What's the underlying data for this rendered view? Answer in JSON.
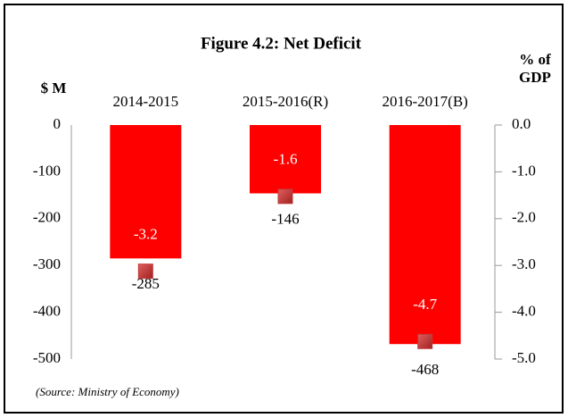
{
  "chart_data": {
    "type": "bar",
    "title": "Figure 4.2: Net Deficit",
    "y_label": "$ M",
    "y2_label_lines": [
      "% of",
      "GDP"
    ],
    "source": "(Source: Ministry of Economy)",
    "categories": [
      "2014-2015",
      "2015-2016(R)",
      "2016-2017(B)"
    ],
    "series": [
      {
        "type": "bar",
        "color": "#ff0000",
        "values": [
          -285,
          -146,
          -468
        ]
      },
      {
        "type": "scatter",
        "axis": "y2",
        "color": "#c0393b",
        "values": [
          -3.2,
          -1.6,
          -4.7
        ]
      }
    ],
    "ylim": [
      -500,
      0
    ],
    "yticks": [
      0,
      -100,
      -200,
      -300,
      -400,
      -500
    ],
    "y2lim": [
      -5,
      0
    ],
    "y2ticks": [
      {
        "value": 0,
        "label": "0.0"
      },
      {
        "value": -1,
        "label": "-1.0"
      },
      {
        "value": -2,
        "label": "-2.0"
      },
      {
        "value": -3,
        "label": "-3.0"
      },
      {
        "value": -4,
        "label": "-4.0"
      },
      {
        "value": -5,
        "label": "-5.0"
      }
    ]
  }
}
